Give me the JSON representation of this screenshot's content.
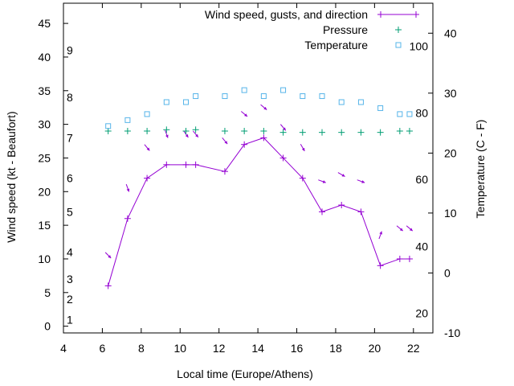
{
  "chart_data": {
    "type": "line",
    "xlabel": "Local time (Europe/Athens)",
    "ylabel": "Wind speed (kt - Beaufort)",
    "y2label": "Temperature (C - F)",
    "xlim": [
      4,
      23
    ],
    "ylim": [
      -1,
      48
    ],
    "y2lim": [
      -10,
      45
    ],
    "xticks": [
      4,
      6,
      8,
      10,
      12,
      14,
      16,
      18,
      20,
      22
    ],
    "yticks": [
      0,
      5,
      10,
      15,
      20,
      25,
      30,
      35,
      40,
      45
    ],
    "y2ticks": [
      -10,
      0,
      10,
      20,
      30,
      40
    ],
    "beaufort_scale": [
      {
        "label": "1",
        "kt": 1
      },
      {
        "label": "2",
        "kt": 4
      },
      {
        "label": "3",
        "kt": 7
      },
      {
        "label": "4",
        "kt": 11
      },
      {
        "label": "5",
        "kt": 17
      },
      {
        "label": "6",
        "kt": 22
      },
      {
        "label": "7",
        "kt": 28
      },
      {
        "label": "8",
        "kt": 34
      },
      {
        "label": "9",
        "kt": 41
      }
    ],
    "fahrenheit_scale": [
      {
        "label": "20",
        "c": -6.7
      },
      {
        "label": "40",
        "c": 4.4
      },
      {
        "label": "60",
        "c": 15.6
      },
      {
        "label": "80",
        "c": 26.7
      },
      {
        "label": "100",
        "c": 37.8
      }
    ],
    "legend_position": "top-right",
    "grid": false,
    "series": [
      {
        "name": "Wind speed, gusts, and direction",
        "color": "#9400d3",
        "marker": "plus",
        "x": [
          6.3,
          7.3,
          8.3,
          9.3,
          10.3,
          10.8,
          12.3,
          13.3,
          14.3,
          15.3,
          16.3,
          17.3,
          18.3,
          19.3,
          20.3,
          21.3,
          21.8
        ],
        "y": [
          6,
          16,
          22,
          24,
          24,
          24,
          23,
          27,
          28,
          25,
          22,
          17,
          18,
          17,
          9,
          10,
          10
        ],
        "direction_deg": [
          315,
          340,
          320,
          340,
          325,
          320,
          320,
          310,
          310,
          320,
          330,
          290,
          300,
          290,
          200,
          310,
          310
        ]
      },
      {
        "name": "Pressure",
        "color": "#009e73",
        "marker": "plus",
        "axis": "left",
        "x": [
          6.3,
          7.3,
          8.3,
          9.3,
          10.3,
          10.8,
          12.3,
          13.3,
          14.3,
          15.3,
          16.3,
          17.3,
          18.3,
          19.3,
          20.3,
          21.3,
          21.8
        ],
        "y": [
          29,
          29,
          29,
          29.2,
          29,
          29.2,
          29,
          29,
          29,
          28.8,
          28.8,
          28.8,
          28.8,
          28.8,
          28.8,
          29,
          29
        ]
      },
      {
        "name": "Temperature",
        "color": "#56b4e9",
        "marker": "square",
        "axis": "right",
        "x": [
          6.3,
          7.3,
          8.3,
          9.3,
          10.3,
          10.8,
          12.3,
          13.3,
          14.3,
          15.3,
          16.3,
          17.3,
          18.3,
          19.3,
          20.3,
          21.3,
          21.8
        ],
        "y": [
          24.5,
          25.5,
          26.5,
          28.5,
          28.5,
          29.5,
          29.5,
          30.5,
          29.5,
          30.5,
          29.5,
          29.5,
          28.5,
          28.5,
          27.5,
          26.5,
          26.5
        ]
      }
    ]
  }
}
